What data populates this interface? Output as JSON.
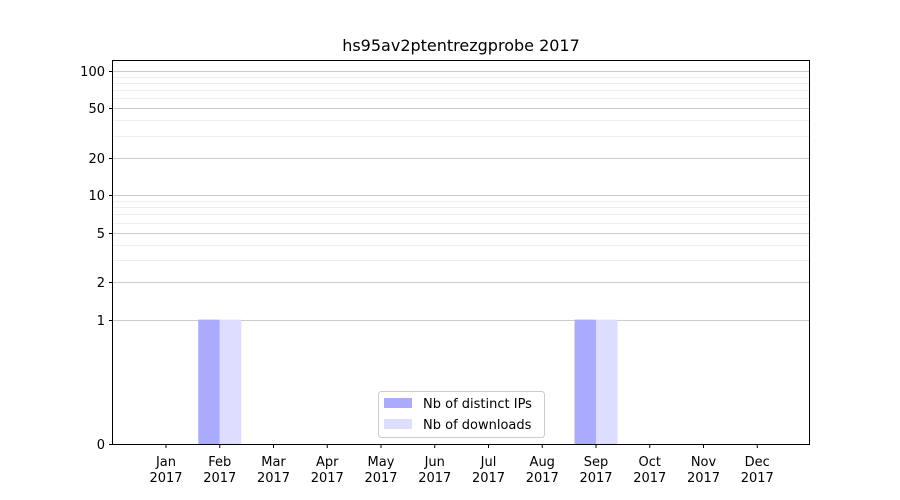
{
  "chart_data": {
    "type": "bar",
    "title": "hs95av2ptentrezgprobe 2017",
    "xlabel": "",
    "ylabel": "",
    "y_scale": "symlog",
    "ylim": [
      0,
      120
    ],
    "y_ticks": [
      0,
      1,
      2,
      5,
      10,
      20,
      50,
      100
    ],
    "grid": true,
    "legend_position": "lower-center",
    "categories": [
      [
        "Jan",
        "2017"
      ],
      [
        "Feb",
        "2017"
      ],
      [
        "Mar",
        "2017"
      ],
      [
        "Apr",
        "2017"
      ],
      [
        "May",
        "2017"
      ],
      [
        "Jun",
        "2017"
      ],
      [
        "Jul",
        "2017"
      ],
      [
        "Aug",
        "2017"
      ],
      [
        "Sep",
        "2017"
      ],
      [
        "Oct",
        "2017"
      ],
      [
        "Nov",
        "2017"
      ],
      [
        "Dec",
        "2017"
      ]
    ],
    "series": [
      {
        "name": "Nb of distinct IPs",
        "color": "#aaaaff",
        "values": [
          0,
          1,
          0,
          0,
          0,
          0,
          0,
          0,
          1,
          0,
          0,
          0
        ]
      },
      {
        "name": "Nb of downloads",
        "color": "#ddddff",
        "values": [
          0,
          1,
          0,
          0,
          0,
          0,
          0,
          0,
          1,
          0,
          0,
          0
        ]
      }
    ]
  }
}
